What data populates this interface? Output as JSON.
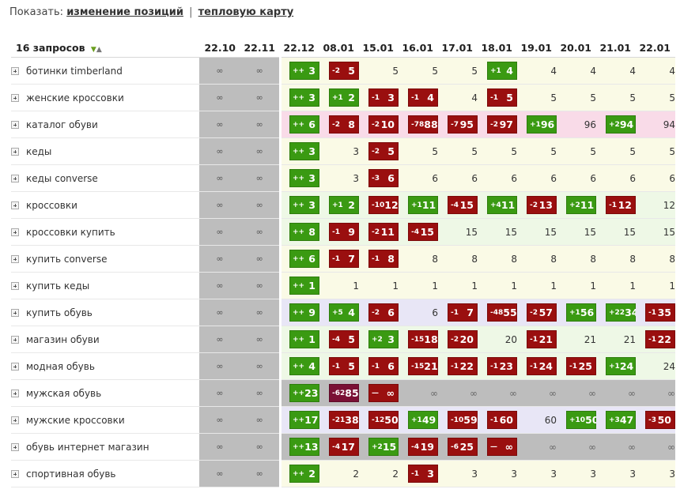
{
  "header": {
    "show_label": "Показать:",
    "link_changes": "изменение позиций",
    "separator": "|",
    "link_heatmap": "тепловую карту"
  },
  "table": {
    "query_count_label": "16 запросов",
    "dates": [
      "22.10",
      "22.11",
      "22.12",
      "08.01",
      "15.01",
      "16.01",
      "17.01",
      "18.01",
      "19.01",
      "20.01",
      "21.01",
      "22.01"
    ],
    "rows": [
      {
        "q": "ботинки timberland",
        "bg": "y",
        "cells": [
          [
            "",
            "∞"
          ],
          [
            "",
            "∞"
          ],
          [
            "+",
            "++",
            "3"
          ],
          [
            "-",
            "-2",
            "5"
          ],
          [
            "",
            "5"
          ],
          [
            "",
            "5"
          ],
          [
            "",
            "5"
          ],
          [
            "+",
            "+1",
            "4"
          ],
          [
            "",
            "4"
          ],
          [
            "",
            "4"
          ],
          [
            "",
            "4"
          ],
          [
            "",
            "4"
          ]
        ]
      },
      {
        "q": "женские кроссовки",
        "bg": "y",
        "cells": [
          [
            "",
            "∞"
          ],
          [
            "",
            "∞"
          ],
          [
            "+",
            "++",
            "3"
          ],
          [
            "+",
            "+1",
            "2"
          ],
          [
            "-",
            "-1",
            "3"
          ],
          [
            "-",
            "-1",
            "4"
          ],
          [
            "",
            "4"
          ],
          [
            "-",
            "-1",
            "5"
          ],
          [
            "",
            "5"
          ],
          [
            "",
            "5"
          ],
          [
            "",
            "5"
          ],
          [
            "",
            "5"
          ]
        ]
      },
      {
        "q": "каталог обуви",
        "bg": "p",
        "cells": [
          [
            "",
            "∞"
          ],
          [
            "",
            "∞"
          ],
          [
            "+",
            "++",
            "6"
          ],
          [
            "-",
            "-2",
            "8"
          ],
          [
            "-",
            "-2",
            "10"
          ],
          [
            "-",
            "-78",
            "88"
          ],
          [
            "-",
            "-7",
            "95"
          ],
          [
            "-",
            "-2",
            "97"
          ],
          [
            "+",
            "+1",
            "96"
          ],
          [
            "",
            "96"
          ],
          [
            "+",
            "+2",
            "94"
          ],
          [
            "",
            "94"
          ]
        ]
      },
      {
        "q": "кеды",
        "bg": "y",
        "cells": [
          [
            "",
            "∞"
          ],
          [
            "",
            "∞"
          ],
          [
            "+",
            "++",
            "3"
          ],
          [
            "",
            "3"
          ],
          [
            "-",
            "-2",
            "5"
          ],
          [
            "",
            "5"
          ],
          [
            "",
            "5"
          ],
          [
            "",
            "5"
          ],
          [
            "",
            "5"
          ],
          [
            "",
            "5"
          ],
          [
            "",
            "5"
          ],
          [
            "",
            "5"
          ]
        ]
      },
      {
        "q": "кеды converse",
        "bg": "y",
        "cells": [
          [
            "",
            "∞"
          ],
          [
            "",
            "∞"
          ],
          [
            "+",
            "++",
            "3"
          ],
          [
            "",
            "3"
          ],
          [
            "-",
            "-3",
            "6"
          ],
          [
            "",
            "6"
          ],
          [
            "",
            "6"
          ],
          [
            "",
            "6"
          ],
          [
            "",
            "6"
          ],
          [
            "",
            "6"
          ],
          [
            "",
            "6"
          ],
          [
            "",
            "6"
          ]
        ]
      },
      {
        "q": "кроссовки",
        "bg": "g",
        "cells": [
          [
            "",
            "∞"
          ],
          [
            "",
            "∞"
          ],
          [
            "+",
            "++",
            "3"
          ],
          [
            "+",
            "+1",
            "2"
          ],
          [
            "-",
            "-10",
            "12"
          ],
          [
            "+",
            "+1",
            "11"
          ],
          [
            "-",
            "-4",
            "15"
          ],
          [
            "+",
            "+4",
            "11"
          ],
          [
            "-",
            "-2",
            "13"
          ],
          [
            "+",
            "+2",
            "11"
          ],
          [
            "-",
            "-1",
            "12"
          ],
          [
            "",
            "12"
          ]
        ]
      },
      {
        "q": "кроссовки купить",
        "bg": "g",
        "cells": [
          [
            "",
            "∞"
          ],
          [
            "",
            "∞"
          ],
          [
            "+",
            "++",
            "8"
          ],
          [
            "-",
            "-1",
            "9"
          ],
          [
            "-",
            "-2",
            "11"
          ],
          [
            "-",
            "-4",
            "15"
          ],
          [
            "",
            "15"
          ],
          [
            "",
            "15"
          ],
          [
            "",
            "15"
          ],
          [
            "",
            "15"
          ],
          [
            "",
            "15"
          ],
          [
            "",
            "15"
          ]
        ]
      },
      {
        "q": "купить converse",
        "bg": "y",
        "cells": [
          [
            "",
            "∞"
          ],
          [
            "",
            "∞"
          ],
          [
            "+",
            "++",
            "6"
          ],
          [
            "-",
            "-1",
            "7"
          ],
          [
            "-",
            "-1",
            "8"
          ],
          [
            "",
            "8"
          ],
          [
            "",
            "8"
          ],
          [
            "",
            "8"
          ],
          [
            "",
            "8"
          ],
          [
            "",
            "8"
          ],
          [
            "",
            "8"
          ],
          [
            "",
            "8"
          ]
        ]
      },
      {
        "q": "купить кеды",
        "bg": "y",
        "cells": [
          [
            "",
            "∞"
          ],
          [
            "",
            "∞"
          ],
          [
            "+",
            "++",
            "1"
          ],
          [
            "",
            "1"
          ],
          [
            "",
            "1"
          ],
          [
            "",
            "1"
          ],
          [
            "",
            "1"
          ],
          [
            "",
            "1"
          ],
          [
            "",
            "1"
          ],
          [
            "",
            "1"
          ],
          [
            "",
            "1"
          ],
          [
            "",
            "1"
          ]
        ]
      },
      {
        "q": "купить обувь",
        "bg": "v",
        "cells": [
          [
            "",
            "∞"
          ],
          [
            "",
            "∞"
          ],
          [
            "+",
            "++",
            "9"
          ],
          [
            "+",
            "+5",
            "4"
          ],
          [
            "-",
            "-2",
            "6"
          ],
          [
            "",
            "6"
          ],
          [
            "-",
            "-1",
            "7"
          ],
          [
            "-",
            "-48",
            "55"
          ],
          [
            "-",
            "-2",
            "57"
          ],
          [
            "+",
            "+1",
            "56"
          ],
          [
            "+",
            "+22",
            "34"
          ],
          [
            "-",
            "-1",
            "35"
          ]
        ]
      },
      {
        "q": "магазин обуви",
        "bg": "g",
        "cells": [
          [
            "",
            "∞"
          ],
          [
            "",
            "∞"
          ],
          [
            "+",
            "++",
            "1"
          ],
          [
            "-",
            "-4",
            "5"
          ],
          [
            "+",
            "+2",
            "3"
          ],
          [
            "-",
            "-15",
            "18"
          ],
          [
            "-",
            "-2",
            "20"
          ],
          [
            "",
            "20"
          ],
          [
            "-",
            "-1",
            "21"
          ],
          [
            "",
            "21"
          ],
          [
            "",
            "21"
          ],
          [
            "-",
            "-1",
            "22"
          ]
        ]
      },
      {
        "q": "модная обувь",
        "bg": "g",
        "cells": [
          [
            "",
            "∞"
          ],
          [
            "",
            "∞"
          ],
          [
            "+",
            "++",
            "4"
          ],
          [
            "-",
            "-1",
            "5"
          ],
          [
            "-",
            "-1",
            "6"
          ],
          [
            "-",
            "-15",
            "21"
          ],
          [
            "-",
            "-1",
            "22"
          ],
          [
            "-",
            "-1",
            "23"
          ],
          [
            "-",
            "-1",
            "24"
          ],
          [
            "-",
            "-1",
            "25"
          ],
          [
            "+",
            "+1",
            "24"
          ],
          [
            "",
            "24"
          ]
        ]
      },
      {
        "q": "мужская обувь",
        "bg": "gr",
        "cells": [
          [
            "",
            "∞"
          ],
          [
            "",
            "∞"
          ],
          [
            "+",
            "++",
            "23"
          ],
          [
            "x",
            "-62",
            "85"
          ],
          [
            "-",
            "—",
            "∞"
          ],
          [
            "",
            "∞"
          ],
          [
            "",
            "∞"
          ],
          [
            "",
            "∞"
          ],
          [
            "",
            "∞"
          ],
          [
            "",
            "∞"
          ],
          [
            "",
            "∞"
          ],
          [
            "",
            "∞"
          ]
        ]
      },
      {
        "q": "мужские кроссовки",
        "bg": "v",
        "cells": [
          [
            "",
            "∞"
          ],
          [
            "",
            "∞"
          ],
          [
            "+",
            "++",
            "17"
          ],
          [
            "-",
            "-21",
            "38"
          ],
          [
            "-",
            "-12",
            "50"
          ],
          [
            "+",
            "+1",
            "49"
          ],
          [
            "-",
            "-10",
            "59"
          ],
          [
            "-",
            "-1",
            "60"
          ],
          [
            "",
            "60"
          ],
          [
            "+",
            "+10",
            "50"
          ],
          [
            "+",
            "+3",
            "47"
          ],
          [
            "-",
            "-3",
            "50"
          ]
        ]
      },
      {
        "q": "обувь интернет магазин",
        "bg": "gr",
        "cells": [
          [
            "",
            "∞"
          ],
          [
            "",
            "∞"
          ],
          [
            "+",
            "++",
            "13"
          ],
          [
            "-",
            "-4",
            "17"
          ],
          [
            "+",
            "+2",
            "15"
          ],
          [
            "-",
            "-4",
            "19"
          ],
          [
            "-",
            "-6",
            "25"
          ],
          [
            "-",
            "—",
            "∞"
          ],
          [
            "",
            "∞"
          ],
          [
            "",
            "∞"
          ],
          [
            "",
            "∞"
          ],
          [
            "",
            "∞"
          ]
        ]
      },
      {
        "q": "спортивная обувь",
        "bg": "y",
        "cells": [
          [
            "",
            "∞"
          ],
          [
            "",
            "∞"
          ],
          [
            "+",
            "++",
            "2"
          ],
          [
            "",
            "2"
          ],
          [
            "",
            "2"
          ],
          [
            "-",
            "-1",
            "3"
          ],
          [
            "",
            "3"
          ],
          [
            "",
            "3"
          ],
          [
            "",
            "3"
          ],
          [
            "",
            "3"
          ],
          [
            "",
            "3"
          ],
          [
            "",
            "3"
          ]
        ]
      }
    ]
  },
  "colors": {
    "positive": "#3a9a12",
    "negative": "#9a0f0f",
    "old_period": "#bdbdbd",
    "row_bg_yellow": "#fafae6",
    "row_bg_green": "#eef8e6",
    "row_bg_pink": "#f9dbe8",
    "row_bg_violet": "#e8e6f6"
  },
  "icons": {
    "expand": "plus-square-icon",
    "sort": "sort-arrows-icon"
  }
}
